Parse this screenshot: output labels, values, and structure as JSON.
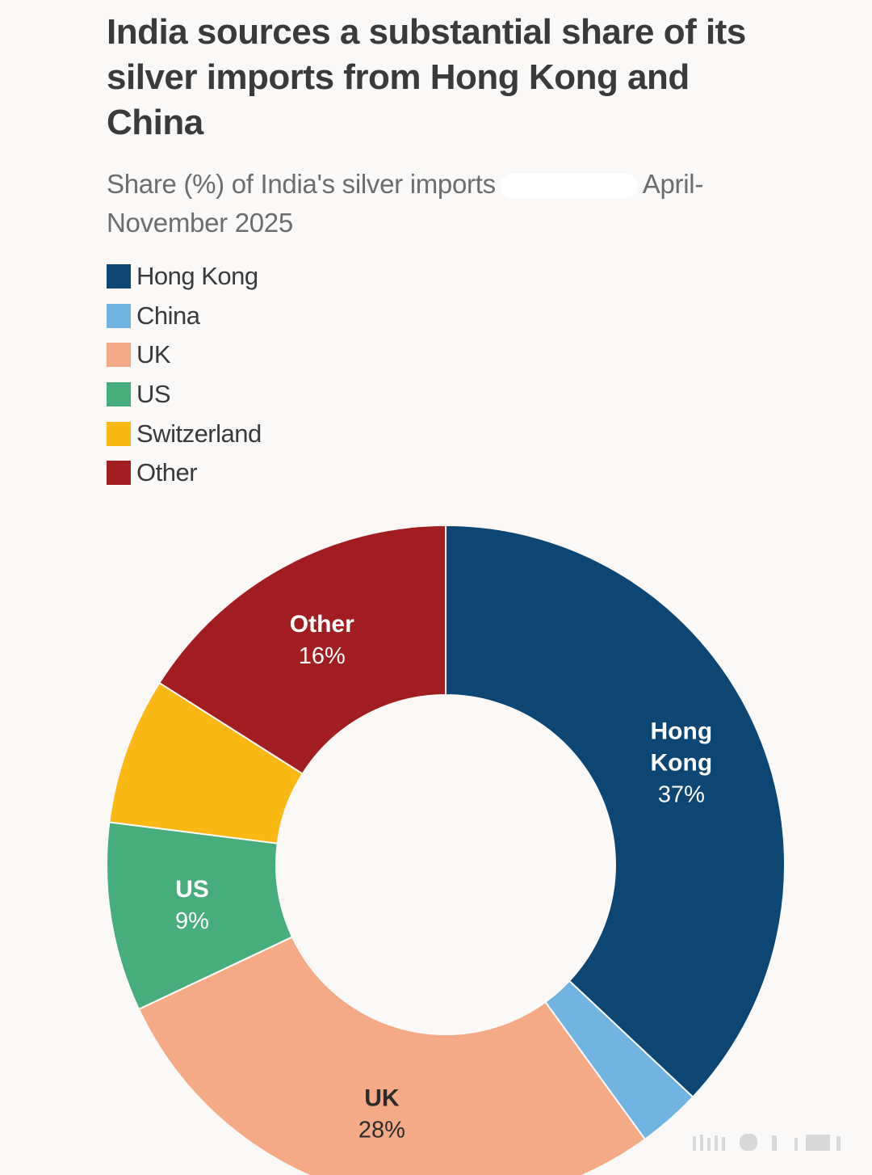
{
  "title": "India sources a substantial share of its silver imports from Hong Kong and China",
  "subtitle": {
    "before": "Share (%) of India's silver imports",
    "after": "April-November 2025"
  },
  "chart_data": {
    "type": "pie",
    "variant": "donut",
    "title": "India sources a substantial share of its silver imports from Hong Kong and China",
    "subtitle": "Share (%) of India's silver imports April-November 2025",
    "unit": "%",
    "legend_position": "top-left",
    "categories": [
      "Hong Kong",
      "China",
      "UK",
      "US",
      "Switzerland",
      "Other"
    ],
    "values": [
      37,
      3,
      28,
      9,
      7,
      16
    ],
    "colors": [
      "#0d4673",
      "#72b4e1",
      "#f4aa86",
      "#47ad7d",
      "#fab815",
      "#a21d21"
    ],
    "data_labels": [
      {
        "name_lines": [
          "Hong",
          "Kong"
        ],
        "value": "37%",
        "text_color": "#ffffff"
      },
      {
        "name_lines": [],
        "value": "",
        "text_color": "#ffffff"
      },
      {
        "name_lines": [
          "UK"
        ],
        "value": "28%",
        "text_color": "#2b2b2b"
      },
      {
        "name_lines": [
          "US"
        ],
        "value": "9%",
        "text_color": "#ffffff"
      },
      {
        "name_lines": [],
        "value": "",
        "text_color": "#ffffff"
      },
      {
        "name_lines": [
          "Other"
        ],
        "value": "16%",
        "text_color": "#ffffff"
      }
    ]
  },
  "legend": [
    {
      "label": "Hong Kong",
      "color": "#0d4673"
    },
    {
      "label": "China",
      "color": "#72b4e1"
    },
    {
      "label": "UK",
      "color": "#f4aa86"
    },
    {
      "label": "US",
      "color": "#47ad7d"
    },
    {
      "label": "Switzerland",
      "color": "#fab815"
    },
    {
      "label": "Other",
      "color": "#a21d21"
    }
  ]
}
